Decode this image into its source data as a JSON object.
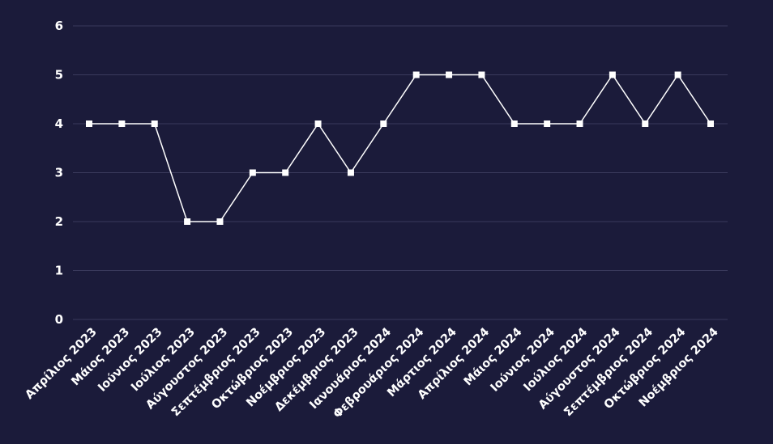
{
  "chart_data": {
    "type": "line",
    "title": "",
    "xlabel": "",
    "ylabel": "",
    "categories": [
      "Απρίλιος 2023",
      "Μάιος 2023",
      "Ιούνιος 2023",
      "Ιούλιος 2023",
      "Αύγουστος 2023",
      "Σεπτέμβριος 2023",
      "Οκτώβριος 2023",
      "Νοέμβριος 2023",
      "Δεκέμβριος 2023",
      "Ιανουάριος 2024",
      "Φεβρουάριος 2024",
      "Μάρτιος 2024",
      "Απρίλιος 2024",
      "Μάιος 2024",
      "Ιούνιος 2024",
      "Ιούλιος 2024",
      "Αύγουστος 2024",
      "Σεπτέμβριος 2024",
      "Οκτώβριος 2024",
      "Νοέμβριος 2024"
    ],
    "series": [
      {
        "values": [
          4,
          4,
          4,
          2,
          2,
          3,
          3,
          4,
          3,
          4,
          5,
          5,
          5,
          4,
          4,
          4,
          5,
          4,
          5,
          4
        ]
      }
    ],
    "ylim": [
      0,
      6
    ],
    "yticks": [
      "0",
      "1",
      "2",
      "3",
      "4",
      "5",
      "6"
    ],
    "grid": true,
    "legend": "none",
    "colors": {
      "background": "#1b1b3a",
      "line": "#ffffff",
      "grid": "#3a3a5c",
      "text": "#ffffff"
    }
  }
}
